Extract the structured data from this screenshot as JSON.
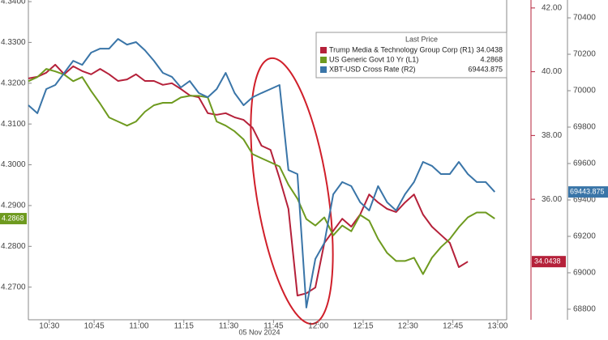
{
  "chart_data": {
    "type": "line",
    "xlabel": "05 Nov 2024",
    "legend_title": "Last Price",
    "xlim": [
      623,
      783
    ],
    "xticks": [
      {
        "value": 630,
        "label": "10:30"
      },
      {
        "value": 645,
        "label": "10:45"
      },
      {
        "value": 660,
        "label": "11:00"
      },
      {
        "value": 675,
        "label": "11:15"
      },
      {
        "value": 690,
        "label": "11:30"
      },
      {
        "value": 705,
        "label": "11:45"
      },
      {
        "value": 720,
        "label": "12:00"
      },
      {
        "value": 735,
        "label": "12:15"
      },
      {
        "value": 750,
        "label": "12:30"
      },
      {
        "value": 765,
        "label": "12:45"
      },
      {
        "value": 780,
        "label": "13:00"
      }
    ],
    "ylim": [
      4.262,
      4.3404
    ],
    "yticks": [
      {
        "value": 4.27,
        "label": "4.2700"
      },
      {
        "value": 4.28,
        "label": "4.2800"
      },
      {
        "value": 4.29,
        "label": "4.2900"
      },
      {
        "value": 4.3,
        "label": "4.3000"
      },
      {
        "value": 4.31,
        "label": "4.3100"
      },
      {
        "value": 4.32,
        "label": "4.3200"
      },
      {
        "value": 4.33,
        "label": "4.3300"
      },
      {
        "value": 4.34,
        "label": "4.3400"
      }
    ],
    "y2lim": [
      32.22,
      42.25
    ],
    "y2ticks": [
      {
        "value": 36,
        "label": "36.00"
      },
      {
        "value": 38,
        "label": "38.00"
      },
      {
        "value": 40,
        "label": "40.00"
      },
      {
        "value": 42,
        "label": "42.00"
      }
    ],
    "y3lim": [
      68742,
      70498
    ],
    "y3ticks": [
      68800,
      69000,
      69200,
      69400,
      69600,
      69800,
      70000,
      70200,
      70400
    ],
    "x": [
      623,
      626,
      629,
      632,
      635,
      638,
      641,
      644,
      647,
      650,
      653,
      656,
      659,
      662,
      665,
      668,
      671,
      674,
      677,
      680,
      683,
      686,
      689,
      692,
      695,
      698,
      701,
      704,
      707,
      710,
      713,
      716,
      719,
      722,
      725,
      728,
      731,
      734,
      737,
      740,
      743,
      746,
      749,
      752,
      755,
      758,
      761,
      764,
      767,
      770,
      773,
      776,
      779
    ],
    "series": [
      {
        "name": "Trump Media & Technology Group Corp (R1)",
        "color": "#b5213a",
        "axis": "y2",
        "values": [
          39.79,
          39.84,
          39.97,
          40.22,
          39.92,
          40.17,
          40.02,
          39.92,
          40.09,
          39.92,
          39.71,
          39.76,
          39.92,
          39.71,
          39.71,
          39.59,
          39.64,
          39.46,
          39.26,
          39.2,
          38.7,
          38.65,
          38.7,
          38.57,
          38.49,
          38.24,
          37.68,
          37.55,
          36.66,
          35.7,
          32.98,
          33.05,
          33.23,
          34.63,
          35.01,
          35.39,
          35.14,
          35.52,
          36.15,
          35.9,
          35.7,
          35.6,
          35.9,
          36.15,
          35.52,
          35.14,
          34.88,
          34.63,
          33.87,
          34.0438,
          null,
          null,
          null
        ]
      },
      {
        "name": "US Generic Govt 10 Yr (L1)",
        "color": "#6e9a1f",
        "axis": "y",
        "values": [
          4.3205,
          4.3215,
          4.3235,
          4.3229,
          4.3221,
          4.3205,
          4.3215,
          4.3181,
          4.315,
          4.3116,
          4.3106,
          4.3096,
          4.3106,
          4.313,
          4.3146,
          4.3152,
          4.3152,
          4.3165,
          4.3169,
          4.3169,
          4.3165,
          4.3106,
          4.3096,
          4.3082,
          4.3062,
          4.3026,
          4.3016,
          4.3006,
          4.2996,
          4.2951,
          4.2917,
          4.2867,
          4.2851,
          4.2871,
          4.2827,
          4.2851,
          4.2837,
          4.2877,
          4.2863,
          4.2818,
          4.2784,
          4.2764,
          4.2764,
          4.2772,
          4.2732,
          4.2772,
          4.2798,
          4.2818,
          4.2847,
          4.2871,
          4.2883,
          4.2883,
          4.2868
        ]
      },
      {
        "name": "XBT-USD Cross Rate (R2)",
        "color": "#3a75a8",
        "axis": "y3",
        "values": [
          69920,
          69876,
          70009,
          70031,
          70098,
          70164,
          70142,
          70209,
          70231,
          70231,
          70284,
          70253,
          70267,
          70222,
          70164,
          70098,
          70076,
          70018,
          70053,
          69987,
          69964,
          70009,
          70098,
          69987,
          69920,
          69964,
          69987,
          70009,
          70031,
          69564,
          69542,
          68809,
          69076,
          69164,
          69431,
          69498,
          69476,
          69387,
          69342,
          69476,
          69387,
          69342,
          69431,
          69498,
          69609,
          69587,
          69542,
          69542,
          69609,
          69542,
          69498,
          69498,
          69443.875
        ]
      }
    ]
  }
}
